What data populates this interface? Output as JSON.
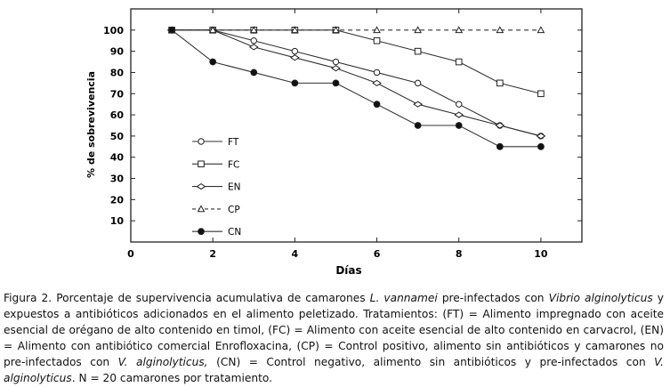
{
  "chart_data": {
    "type": "line",
    "title": "",
    "xlabel": "Días",
    "ylabel": "% de sobrevivencia",
    "xlim": [
      0,
      11
    ],
    "ylim": [
      0,
      110
    ],
    "xticks": [
      0,
      2,
      4,
      6,
      8,
      10
    ],
    "yticks": [
      10,
      20,
      30,
      40,
      50,
      60,
      70,
      80,
      90,
      100
    ],
    "x": [
      1,
      2,
      3,
      4,
      5,
      6,
      7,
      8,
      9,
      10
    ],
    "legend_position": "left",
    "series": [
      {
        "name": "FT",
        "marker": "circle-open",
        "dash": "solid",
        "values": [
          100,
          100,
          95,
          90,
          85,
          80,
          75,
          65,
          55,
          50
        ]
      },
      {
        "name": "FC",
        "marker": "square-open",
        "dash": "solid",
        "values": [
          100,
          100,
          100,
          100,
          100,
          95,
          90,
          85,
          75,
          70
        ]
      },
      {
        "name": "EN",
        "marker": "diamond-open",
        "dash": "solid",
        "values": [
          100,
          100,
          92,
          87,
          82,
          75,
          65,
          60,
          55,
          50
        ]
      },
      {
        "name": "CP",
        "marker": "triangle-open",
        "dash": "dashed",
        "values": [
          100,
          100,
          100,
          100,
          100,
          100,
          100,
          100,
          100,
          100
        ]
      },
      {
        "name": "CN",
        "marker": "circle-filled",
        "dash": "solid",
        "values": [
          100,
          85,
          80,
          75,
          75,
          65,
          55,
          55,
          45,
          45
        ]
      }
    ]
  },
  "caption": {
    "p1": "Figura 2. Porcentaje de supervivencia acumulativa de camarones ",
    "sp1": "L. vannamei",
    "p2": " pre-infectados con ",
    "sp2": "Vibrio alginolyticus",
    "p3": " y expuestos a antibióticos adicionados en el alimento peletizado. Tratamientos: (FT) = Alimento impregnado con aceite esencial de orégano de alto contenido en timol, (FC) = Alimento con aceite esencial de alto contenido en carvacrol, (EN) = Alimento con antibiótico comercial Enrofloxacina, (CP) = Control positivo, alimento sin antibióticos y camarones no pre-infectados con ",
    "sp3": "V. alginolyticus,",
    "p4": " (CN) = Control negativo, alimento sin antibióticos y pre-infectados con ",
    "sp4": "V. alginolyticus",
    "p5": ". N = 20 camarones por tratamiento."
  }
}
